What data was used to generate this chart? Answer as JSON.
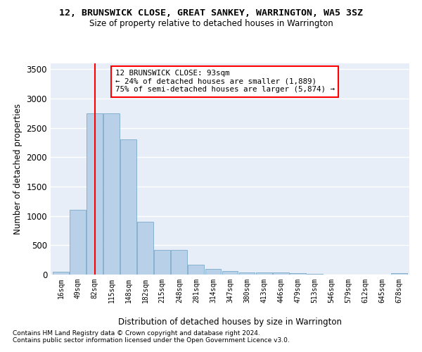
{
  "title": "12, BRUNSWICK CLOSE, GREAT SANKEY, WARRINGTON, WA5 3SZ",
  "subtitle": "Size of property relative to detached houses in Warrington",
  "xlabel": "Distribution of detached houses by size in Warrington",
  "ylabel": "Number of detached properties",
  "footnote1": "Contains HM Land Registry data © Crown copyright and database right 2024.",
  "footnote2": "Contains public sector information licensed under the Open Government Licence v3.0.",
  "categories": [
    "16sqm",
    "49sqm",
    "82sqm",
    "115sqm",
    "148sqm",
    "182sqm",
    "215sqm",
    "248sqm",
    "281sqm",
    "314sqm",
    "347sqm",
    "380sqm",
    "413sqm",
    "446sqm",
    "479sqm",
    "513sqm",
    "546sqm",
    "579sqm",
    "612sqm",
    "645sqm",
    "678sqm"
  ],
  "values": [
    50,
    1100,
    2750,
    2750,
    2300,
    900,
    420,
    420,
    170,
    100,
    60,
    40,
    40,
    35,
    20,
    10,
    5,
    5,
    5,
    5,
    30
  ],
  "bar_color": "#b8d0e8",
  "bar_edge_color": "#7aabcc",
  "bg_color": "#e8eef8",
  "grid_color": "#ffffff",
  "vline_x": 2.0,
  "vline_color": "red",
  "annotation_text": "12 BRUNSWICK CLOSE: 93sqm\n← 24% of detached houses are smaller (1,889)\n75% of semi-detached houses are larger (5,874) →",
  "annotation_box_color": "red",
  "ylim": [
    0,
    3600
  ],
  "yticks": [
    0,
    500,
    1000,
    1500,
    2000,
    2500,
    3000,
    3500
  ]
}
